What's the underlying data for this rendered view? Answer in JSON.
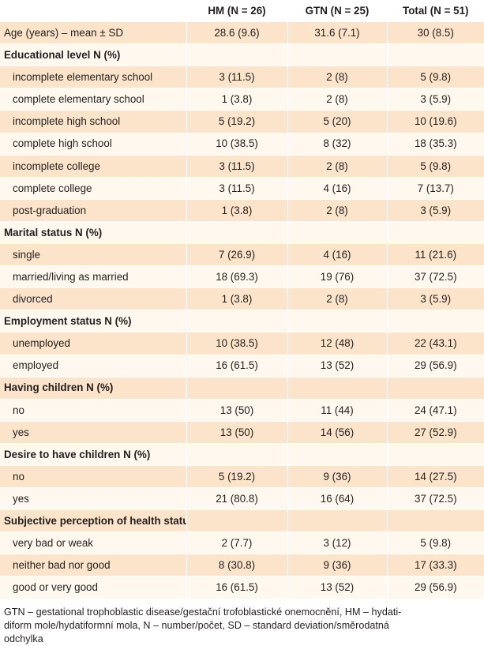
{
  "columns": [
    "",
    "HM (N = 26)",
    "GTN (N = 25)",
    "Total (N = 51)"
  ],
  "rows": [
    {
      "type": "data",
      "indent": false,
      "shade": "band",
      "label": "Age (years) – mean ± SD",
      "hm": "28.6 (9.6)",
      "gtn": "31.6 (7.1)",
      "total": "30 (8.5)"
    },
    {
      "type": "section",
      "shade": "plain",
      "label": "Educational level N (%)"
    },
    {
      "type": "data",
      "indent": true,
      "shade": "band",
      "label": "incomplete elementary school",
      "hm": "3 (11.5)",
      "gtn": "2 (8)",
      "total": "5 (9.8)"
    },
    {
      "type": "data",
      "indent": true,
      "shade": "plain",
      "label": "complete elementary school",
      "hm": "1 (3.8)",
      "gtn": "2 (8)",
      "total": "3 (5.9)"
    },
    {
      "type": "data",
      "indent": true,
      "shade": "band",
      "label": "incomplete high school",
      "hm": "5 (19.2)",
      "gtn": "5 (20)",
      "total": "10 (19.6)"
    },
    {
      "type": "data",
      "indent": true,
      "shade": "plain",
      "label": "complete high school",
      "hm": "10 (38.5)",
      "gtn": "8 (32)",
      "total": "18 (35.3)"
    },
    {
      "type": "data",
      "indent": true,
      "shade": "band",
      "label": "incomplete college",
      "hm": "3 (11.5)",
      "gtn": "2 (8)",
      "total": "5 (9.8)"
    },
    {
      "type": "data",
      "indent": true,
      "shade": "plain",
      "label": "complete college",
      "hm": "3 (11.5)",
      "gtn": "4 (16)",
      "total": "7 (13.7)"
    },
    {
      "type": "data",
      "indent": true,
      "shade": "band",
      "label": "post-graduation",
      "hm": "1 (3.8)",
      "gtn": "2 (8)",
      "total": "3 (5.9)"
    },
    {
      "type": "section",
      "shade": "plain",
      "label": "Marital status N (%)"
    },
    {
      "type": "data",
      "indent": true,
      "shade": "band",
      "label": "single",
      "hm": "7 (26.9)",
      "gtn": "4 (16)",
      "total": "11 (21.6)"
    },
    {
      "type": "data",
      "indent": true,
      "shade": "plain",
      "label": "married/living as married",
      "hm": "18 (69.3)",
      "gtn": "19 (76)",
      "total": "37 (72.5)"
    },
    {
      "type": "data",
      "indent": true,
      "shade": "band",
      "label": "divorced",
      "hm": "1 (3.8)",
      "gtn": "2 (8)",
      "total": "3 (5.9)"
    },
    {
      "type": "section",
      "shade": "plain",
      "label": "Employment status N (%)"
    },
    {
      "type": "data",
      "indent": true,
      "shade": "band",
      "label": "unemployed",
      "hm": "10 (38.5)",
      "gtn": "12 (48)",
      "total": "22 (43.1)"
    },
    {
      "type": "data",
      "indent": true,
      "shade": "plain",
      "label": "employed",
      "hm": "16 (61.5)",
      "gtn": "13 (52)",
      "total": "29 (56.9)"
    },
    {
      "type": "section",
      "shade": "band",
      "label": "Having children N (%)"
    },
    {
      "type": "data",
      "indent": true,
      "shade": "plain",
      "label": "no",
      "hm": "13 (50)",
      "gtn": "11 (44)",
      "total": "24 (47.1)"
    },
    {
      "type": "data",
      "indent": true,
      "shade": "band",
      "label": "yes",
      "hm": "13 (50)",
      "gtn": "14 (56)",
      "total": "27 (52.9)"
    },
    {
      "type": "section",
      "shade": "plain",
      "label": "Desire to have children N (%)"
    },
    {
      "type": "data",
      "indent": true,
      "shade": "band",
      "label": "no",
      "hm": "5 (19.2)",
      "gtn": "9 (36)",
      "total": "14 (27.5)"
    },
    {
      "type": "data",
      "indent": true,
      "shade": "plain",
      "label": "yes",
      "hm": "21 (80.8)",
      "gtn": "16 (64)",
      "total": "37 (72.5)"
    },
    {
      "type": "section",
      "shade": "band",
      "label": "Subjective perception of health status N (%)"
    },
    {
      "type": "data",
      "indent": true,
      "shade": "plain",
      "label": "very bad or weak",
      "hm": "2 (7.7)",
      "gtn": "3 (12)",
      "total": "5 (9.8)"
    },
    {
      "type": "data",
      "indent": true,
      "shade": "band",
      "label": "neither bad nor good",
      "hm": "8 (30.8)",
      "gtn": "9 (36)",
      "total": "17 (33.3)"
    },
    {
      "type": "data",
      "indent": true,
      "shade": "plain",
      "label": "good or very good",
      "hm": "16 (61.5)",
      "gtn": "13 (52)",
      "total": "29 (56.9)"
    }
  ],
  "footnote": {
    "line1": "GTN – gestational trophoblastic disease/gestační trofoblastické onemocnění, HM – hydati-",
    "line2": "diform mole/hydatiformní mola, N – number/počet, SD – standard deviation/směrodatná",
    "line3": "odchylka"
  },
  "colors": {
    "band": "#fbe4c9",
    "plain": "#fff8ef"
  }
}
